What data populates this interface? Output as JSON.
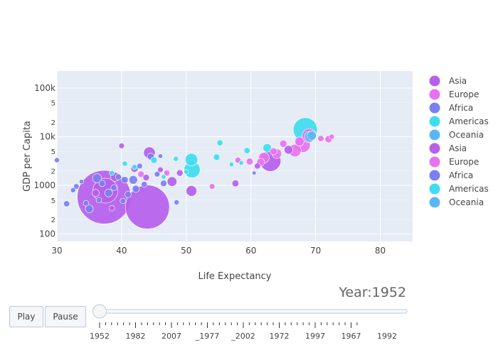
{
  "chart_data": {
    "type": "scatter",
    "title": "",
    "xlabel": "Life Expectancy",
    "ylabel": "GDP per Capita",
    "xlim": [
      30,
      85
    ],
    "ylim_log10": [
      1.85,
      5.35
    ],
    "x_ticks": [
      30,
      40,
      50,
      60,
      70,
      80
    ],
    "y_major_ticks": [
      {
        "value": 100,
        "label": "100"
      },
      {
        "value": 1000,
        "label": "1000"
      },
      {
        "value": 10000,
        "label": "10k"
      },
      {
        "value": 100000,
        "label": "100k"
      }
    ],
    "y_minor_ticks": [
      {
        "value": 200,
        "label": "2"
      },
      {
        "value": 500,
        "label": "5"
      },
      {
        "value": 2000,
        "label": "2"
      },
      {
        "value": 5000,
        "label": "5"
      },
      {
        "value": 20000,
        "label": "2"
      },
      {
        "value": 50000,
        "label": "5"
      }
    ],
    "legend": [
      {
        "name": "Asia",
        "color": "#b660eb"
      },
      {
        "name": "Europe",
        "color": "#e772f0"
      },
      {
        "name": "Africa",
        "color": "#7b7ff2"
      },
      {
        "name": "Americas",
        "color": "#3fdcef"
      },
      {
        "name": "Oceania",
        "color": "#5ab7f6"
      },
      {
        "name": "Asia",
        "color": "#b660eb"
      },
      {
        "name": "Europe",
        "color": "#e772f0"
      },
      {
        "name": "Africa",
        "color": "#7b7ff2"
      },
      {
        "name": "Americas",
        "color": "#3fdcef"
      },
      {
        "name": "Oceania",
        "color": "#5ab7f6"
      }
    ],
    "series": [
      {
        "name": "Asia",
        "color": "#b660eb",
        "points": [
          {
            "x": 37.3,
            "y": 575,
            "size": 556
          },
          {
            "x": 44.0,
            "y": 360,
            "size": 372
          },
          {
            "x": 63.0,
            "y": 3200,
            "size": 86
          },
          {
            "x": 37.5,
            "y": 780,
            "size": 120
          },
          {
            "x": 44.3,
            "y": 4700,
            "size": 26
          },
          {
            "x": 50.8,
            "y": 770,
            "size": 22
          },
          {
            "x": 47.8,
            "y": 1200,
            "size": 18
          },
          {
            "x": 39.0,
            "y": 1500,
            "size": 15
          },
          {
            "x": 65.8,
            "y": 5400,
            "size": 14
          },
          {
            "x": 42.0,
            "y": 2200,
            "size": 10
          },
          {
            "x": 57.6,
            "y": 1100,
            "size": 9
          },
          {
            "x": 49.0,
            "y": 1800,
            "size": 8
          },
          {
            "x": 43.8,
            "y": 1450,
            "size": 8
          },
          {
            "x": 40.0,
            "y": 6500,
            "size": 6
          },
          {
            "x": 61.0,
            "y": 2500,
            "size": 7
          },
          {
            "x": 36.0,
            "y": 700,
            "size": 10
          },
          {
            "x": 46.0,
            "y": 2100,
            "size": 6
          },
          {
            "x": 38.5,
            "y": 340,
            "size": 6
          }
        ]
      },
      {
        "name": "Europe",
        "color": "#e772f0",
        "points": [
          {
            "x": 68.0,
            "y": 6800,
            "size": 44
          },
          {
            "x": 69.0,
            "y": 10500,
            "size": 38
          },
          {
            "x": 66.8,
            "y": 5200,
            "size": 30
          },
          {
            "x": 62.0,
            "y": 3700,
            "size": 22
          },
          {
            "x": 64.0,
            "y": 4500,
            "size": 18
          },
          {
            "x": 72.0,
            "y": 8900,
            "size": 10
          },
          {
            "x": 70.8,
            "y": 9200,
            "size": 7
          },
          {
            "x": 63.5,
            "y": 5000,
            "size": 10
          },
          {
            "x": 61.5,
            "y": 3000,
            "size": 12
          },
          {
            "x": 59.8,
            "y": 3100,
            "size": 9
          },
          {
            "x": 58.0,
            "y": 3300,
            "size": 7
          },
          {
            "x": 54.0,
            "y": 950,
            "size": 6
          },
          {
            "x": 47.0,
            "y": 1800,
            "size": 7
          },
          {
            "x": 65.0,
            "y": 7200,
            "size": 10
          },
          {
            "x": 72.5,
            "y": 10000,
            "size": 5
          },
          {
            "x": 67.5,
            "y": 8000,
            "size": 16
          },
          {
            "x": 43.0,
            "y": 1700,
            "size": 8
          }
        ]
      },
      {
        "name": "Africa",
        "color": "#7b7ff2",
        "points": [
          {
            "x": 35.0,
            "y": 330,
            "size": 12
          },
          {
            "x": 38.0,
            "y": 700,
            "size": 12
          },
          {
            "x": 41.8,
            "y": 1300,
            "size": 14
          },
          {
            "x": 42.2,
            "y": 850,
            "size": 10
          },
          {
            "x": 44.5,
            "y": 3900,
            "size": 9
          },
          {
            "x": 40.5,
            "y": 1300,
            "size": 9
          },
          {
            "x": 33.0,
            "y": 950,
            "size": 6
          },
          {
            "x": 31.5,
            "y": 420,
            "size": 7
          },
          {
            "x": 36.5,
            "y": 500,
            "size": 6
          },
          {
            "x": 39.5,
            "y": 1500,
            "size": 7
          },
          {
            "x": 43.5,
            "y": 1050,
            "size": 7
          },
          {
            "x": 45.5,
            "y": 1700,
            "size": 6
          },
          {
            "x": 30.0,
            "y": 3300,
            "size": 5
          },
          {
            "x": 32.5,
            "y": 800,
            "size": 5
          },
          {
            "x": 48.5,
            "y": 450,
            "size": 5
          },
          {
            "x": 37.0,
            "y": 1100,
            "size": 8
          },
          {
            "x": 41.0,
            "y": 650,
            "size": 8
          },
          {
            "x": 46.5,
            "y": 1100,
            "size": 8
          },
          {
            "x": 34.5,
            "y": 430,
            "size": 6
          },
          {
            "x": 38.8,
            "y": 900,
            "size": 7
          },
          {
            "x": 42.8,
            "y": 2500,
            "size": 6
          },
          {
            "x": 40.2,
            "y": 480,
            "size": 6
          },
          {
            "x": 33.8,
            "y": 1200,
            "size": 4
          },
          {
            "x": 36.2,
            "y": 1400,
            "size": 16
          },
          {
            "x": 60.5,
            "y": 1800,
            "size": 3
          },
          {
            "x": 46.0,
            "y": 4000,
            "size": 4
          }
        ]
      },
      {
        "name": "Americas",
        "color": "#3fdcef",
        "points": [
          {
            "x": 68.4,
            "y": 13990,
            "size": 112
          },
          {
            "x": 50.9,
            "y": 2100,
            "size": 50
          },
          {
            "x": 50.8,
            "y": 3400,
            "size": 30
          },
          {
            "x": 62.5,
            "y": 5900,
            "size": 14
          },
          {
            "x": 54.7,
            "y": 3800,
            "size": 8
          },
          {
            "x": 55.2,
            "y": 7500,
            "size": 7
          },
          {
            "x": 59.4,
            "y": 5200,
            "size": 7
          },
          {
            "x": 48.4,
            "y": 3500,
            "size": 5
          },
          {
            "x": 45.0,
            "y": 3300,
            "size": 8
          },
          {
            "x": 42.0,
            "y": 2400,
            "size": 5
          },
          {
            "x": 40.5,
            "y": 2800,
            "size": 5
          },
          {
            "x": 58.5,
            "y": 2900,
            "size": 4
          },
          {
            "x": 57.0,
            "y": 2700,
            "size": 4
          },
          {
            "x": 50.0,
            "y": 1900,
            "size": 4
          },
          {
            "x": 38.5,
            "y": 1800,
            "size": 5
          },
          {
            "x": 46.5,
            "y": 1500,
            "size": 4
          }
        ]
      },
      {
        "name": "Oceania",
        "color": "#5ab7f6",
        "points": [
          {
            "x": 69.1,
            "y": 10000,
            "size": 22
          },
          {
            "x": 69.4,
            "y": 10560,
            "size": 16
          }
        ]
      }
    ]
  },
  "controls": {
    "play_label": "Play",
    "pause_label": "Pause",
    "year_prefix": "Year:",
    "current_year": "1952",
    "slider_labels": [
      "1952",
      "1982",
      "2007",
      "_1977",
      "_2002",
      "1972",
      "1997",
      "1967",
      "1992"
    ],
    "slider_value_index": 0
  }
}
